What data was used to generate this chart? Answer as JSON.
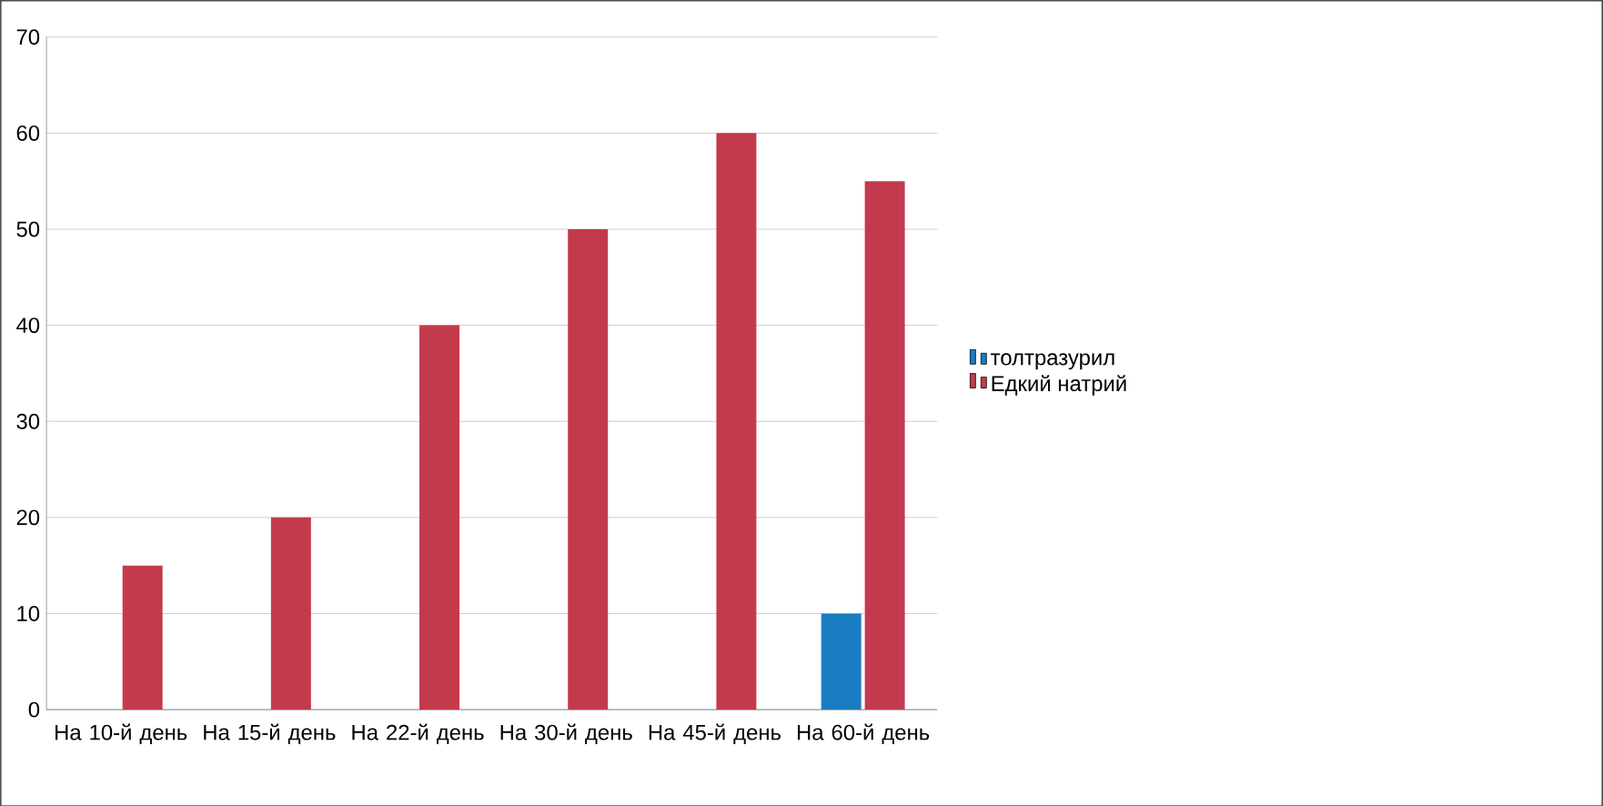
{
  "chart_data": {
    "type": "bar",
    "categories": [
      "На 10-й день",
      "На 15-й день",
      "На 22-й день",
      "На 30-й день",
      "На 45-й день",
      "На 60-й день"
    ],
    "series": [
      {
        "name": "толтразурил",
        "color": "#1a7cc1",
        "values": [
          0,
          0,
          0,
          0,
          0,
          10
        ]
      },
      {
        "name": "Едкий натрий",
        "color": "#c23a4b",
        "values": [
          15,
          20,
          40,
          50,
          60,
          55
        ]
      }
    ],
    "ylim": [
      0,
      70
    ],
    "yticks": [
      0,
      10,
      20,
      30,
      40,
      50,
      60,
      70
    ],
    "grid": "y",
    "legend": "right"
  }
}
